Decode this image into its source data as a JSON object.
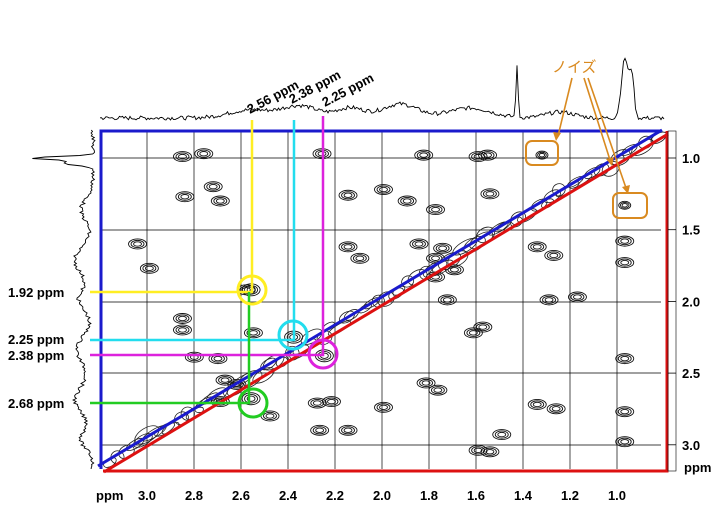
{
  "figure": {
    "noise_label": "ノイズ",
    "colors": {
      "blue": "#1a1acc",
      "red": "#dd1111",
      "yellow": "#ffee22",
      "cyan": "#22ddee",
      "magenta": "#dd22dd",
      "green": "#22cc22",
      "orange": "#d98a20",
      "grid": "#000000"
    }
  },
  "axes": {
    "x_unit": "ppm",
    "y_unit": "ppm",
    "x_ticks": [
      "3.0",
      "2.8",
      "2.6",
      "2.4",
      "2.2",
      "2.0",
      "1.8",
      "1.6",
      "1.4",
      "1.2",
      "1.0"
    ],
    "y_ticks": [
      "1.0",
      "1.5",
      "2.0",
      "2.5",
      "3.0"
    ]
  },
  "top_labels": [
    "2.56 ppm",
    "2.38 ppm",
    "2.25 ppm"
  ],
  "left_labels": [
    "1.92 ppm",
    "2.25 ppm",
    "2.38 ppm",
    "2.68 ppm"
  ],
  "chart_data": {
    "type": "scatter",
    "title": "",
    "xlabel": "ppm",
    "ylabel": "ppm",
    "xlim": [
      3.1,
      0.8
    ],
    "ylim": [
      0.85,
      3.1
    ],
    "highlighted_crosspeaks": [
      {
        "x": 2.56,
        "y": 1.92,
        "color": "yellow"
      },
      {
        "x": 2.38,
        "y": 2.25,
        "color": "cyan"
      },
      {
        "x": 2.25,
        "y": 2.38,
        "color": "magenta"
      },
      {
        "x": 2.56,
        "y": 2.68,
        "color": "green"
      }
    ],
    "noise_peaks": [
      {
        "x": 1.33,
        "y": 0.98
      },
      {
        "x": 0.98,
        "y": 1.33
      }
    ],
    "peaks": [
      {
        "x": 2.85,
        "y": 0.99
      },
      {
        "x": 2.76,
        "y": 0.97
      },
      {
        "x": 2.26,
        "y": 0.97
      },
      {
        "x": 1.83,
        "y": 0.98
      },
      {
        "x": 1.6,
        "y": 0.99
      },
      {
        "x": 1.56,
        "y": 0.98
      },
      {
        "x": 2.84,
        "y": 1.27
      },
      {
        "x": 2.72,
        "y": 1.2
      },
      {
        "x": 2.69,
        "y": 1.3
      },
      {
        "x": 2.15,
        "y": 1.26
      },
      {
        "x": 2.0,
        "y": 1.22
      },
      {
        "x": 1.9,
        "y": 1.3
      },
      {
        "x": 1.78,
        "y": 1.36
      },
      {
        "x": 1.55,
        "y": 1.25
      },
      {
        "x": 3.04,
        "y": 1.6
      },
      {
        "x": 2.99,
        "y": 1.77
      },
      {
        "x": 2.15,
        "y": 1.62
      },
      {
        "x": 2.1,
        "y": 1.7
      },
      {
        "x": 1.85,
        "y": 1.6
      },
      {
        "x": 1.78,
        "y": 1.7
      },
      {
        "x": 1.75,
        "y": 1.63
      },
      {
        "x": 1.7,
        "y": 1.78
      },
      {
        "x": 1.35,
        "y": 1.62
      },
      {
        "x": 1.28,
        "y": 1.68
      },
      {
        "x": 0.98,
        "y": 1.58
      },
      {
        "x": 0.98,
        "y": 1.73
      },
      {
        "x": 2.58,
        "y": 1.92
      },
      {
        "x": 1.78,
        "y": 1.83
      },
      {
        "x": 1.73,
        "y": 1.99
      },
      {
        "x": 1.3,
        "y": 1.99
      },
      {
        "x": 1.18,
        "y": 1.97
      },
      {
        "x": 2.85,
        "y": 2.12
      },
      {
        "x": 2.85,
        "y": 2.2
      },
      {
        "x": 2.55,
        "y": 2.22
      },
      {
        "x": 1.62,
        "y": 2.22
      },
      {
        "x": 1.58,
        "y": 2.18
      },
      {
        "x": 2.8,
        "y": 2.39
      },
      {
        "x": 2.7,
        "y": 2.4
      },
      {
        "x": 0.98,
        "y": 2.4
      },
      {
        "x": 2.67,
        "y": 2.55
      },
      {
        "x": 2.62,
        "y": 2.58
      },
      {
        "x": 1.82,
        "y": 2.57
      },
      {
        "x": 1.77,
        "y": 2.62
      },
      {
        "x": 2.69,
        "y": 2.7
      },
      {
        "x": 2.48,
        "y": 2.8
      },
      {
        "x": 2.28,
        "y": 2.71
      },
      {
        "x": 2.22,
        "y": 2.7
      },
      {
        "x": 2.0,
        "y": 2.74
      },
      {
        "x": 1.35,
        "y": 2.72
      },
      {
        "x": 1.27,
        "y": 2.75
      },
      {
        "x": 0.98,
        "y": 2.77
      },
      {
        "x": 2.27,
        "y": 2.9
      },
      {
        "x": 2.15,
        "y": 2.9
      },
      {
        "x": 1.5,
        "y": 2.93
      },
      {
        "x": 1.6,
        "y": 3.04
      },
      {
        "x": 1.55,
        "y": 3.05
      },
      {
        "x": 0.98,
        "y": 2.98
      }
    ]
  }
}
